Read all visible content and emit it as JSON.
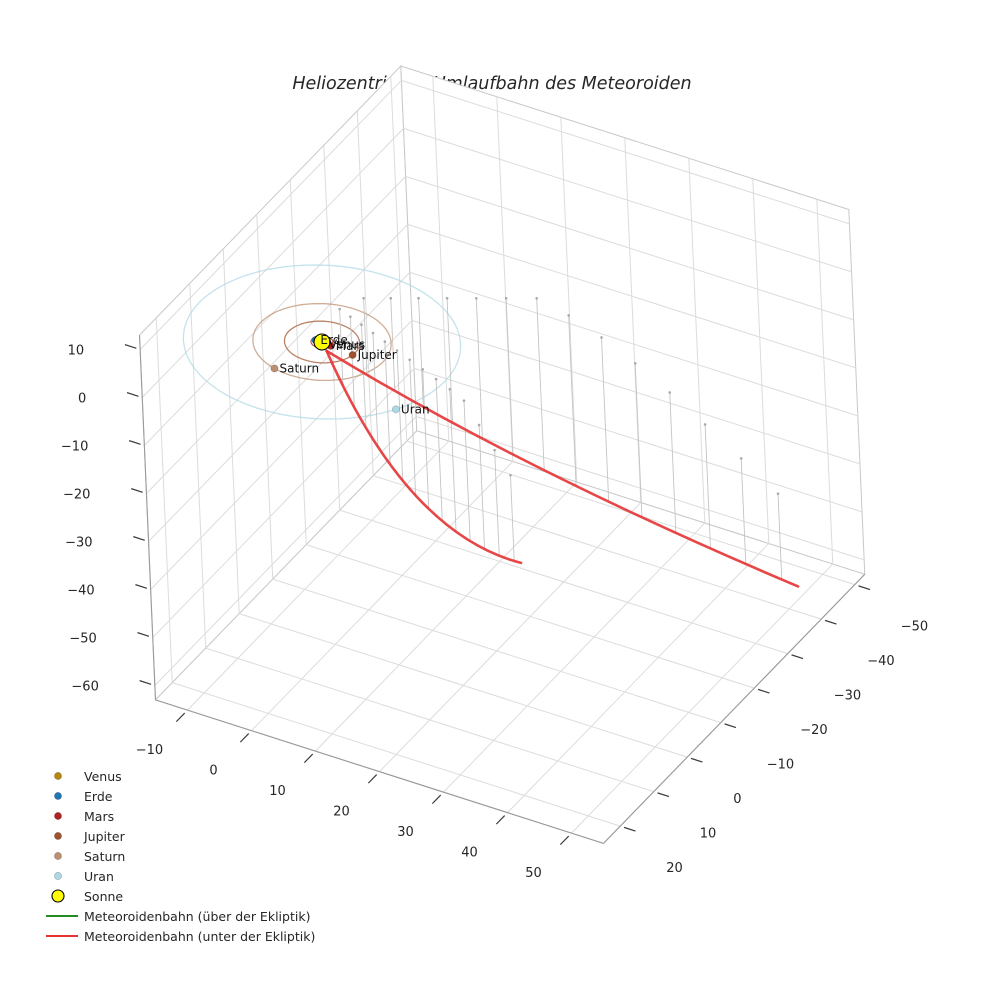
{
  "chart_data": {
    "type": "scatter",
    "projection": "3d",
    "title": "Heliozentrische Umlaufbahn des Meteoroiden",
    "axes": {
      "x_ticks": [
        -10,
        0,
        10,
        20,
        30,
        40,
        50
      ],
      "y_ticks": [
        -50,
        -40,
        -30,
        -20,
        -10,
        0,
        10,
        20
      ],
      "z_ticks": [
        -60,
        -50,
        -40,
        -30,
        -20,
        -10,
        0,
        10
      ],
      "xlim": [
        -15,
        55
      ],
      "ylim": [
        -53,
        25
      ],
      "zlim": [
        -63,
        13
      ],
      "grid": true,
      "legend_position": "lower-left"
    },
    "sun": {
      "name": "Sonne",
      "color": "#ffff00",
      "edge_color": "#000000",
      "pos": [
        0,
        0,
        0
      ]
    },
    "planets": [
      {
        "name": "Venus",
        "color": "#b8860b",
        "orbit_radius_au": 0.72,
        "pos": [
          0.55,
          0.46,
          0
        ]
      },
      {
        "name": "Erde",
        "color": "#1f77b4",
        "orbit_radius_au": 1.0,
        "pos": [
          -1.0,
          0.05,
          0
        ]
      },
      {
        "name": "Mars",
        "color": "#b22222",
        "orbit_radius_au": 1.52,
        "pos": [
          1.5,
          0.25,
          0
        ]
      },
      {
        "name": "Jupiter",
        "color": "#a0522d",
        "orbit_radius_au": 5.2,
        "pos": [
          5.15,
          0.7,
          0
        ]
      },
      {
        "name": "Saturn",
        "color": "#bc8f6f",
        "orbit_radius_au": 9.58,
        "pos": [
          -2.6,
          9.22,
          0
        ]
      },
      {
        "name": "Uran",
        "color": "#add8e6",
        "orbit_radius_au": 19.2,
        "pos": [
          16.6,
          9.65,
          0
        ]
      }
    ],
    "meteoroid": {
      "above_label": "Meteoroidenbahn (über der Ekliptik)",
      "above_color": "#228b22",
      "below_label": "Meteoroidenbahn (unter der Ekliptik)",
      "below_color": "#e63333",
      "branches": [
        {
          "p0": [
            56,
            -32,
            -50
          ],
          "ctrl": [
            24,
            -13,
            -26
          ],
          "p2": [
            1.0,
            0.6,
            -1.0
          ]
        },
        {
          "p0": [
            40,
            18,
            -16
          ],
          "ctrl": [
            16,
            7,
            -28
          ],
          "p2": [
            1.0,
            0.6,
            -1.0
          ]
        }
      ],
      "stems_per_branch": 14
    },
    "legend": {
      "items": [
        {
          "label": "Venus",
          "marker": "dot",
          "color": "#b8860b"
        },
        {
          "label": "Erde",
          "marker": "dot",
          "color": "#1f77b4"
        },
        {
          "label": "Mars",
          "marker": "dot",
          "color": "#b22222"
        },
        {
          "label": "Jupiter",
          "marker": "dot",
          "color": "#a0522d"
        },
        {
          "label": "Saturn",
          "marker": "dot",
          "color": "#bc8f6f"
        },
        {
          "label": "Uran",
          "marker": "dot",
          "color": "#add8e6"
        },
        {
          "label": "Sonne",
          "marker": "dot-large",
          "color": "#ffff00",
          "edge": "#000000"
        },
        {
          "label": "Meteoroidenbahn (über der Ekliptik)",
          "marker": "line",
          "color": "#228b22"
        },
        {
          "label": "Meteoroidenbahn (unter der Ekliptik)",
          "marker": "line",
          "color": "#e63333"
        }
      ]
    }
  }
}
